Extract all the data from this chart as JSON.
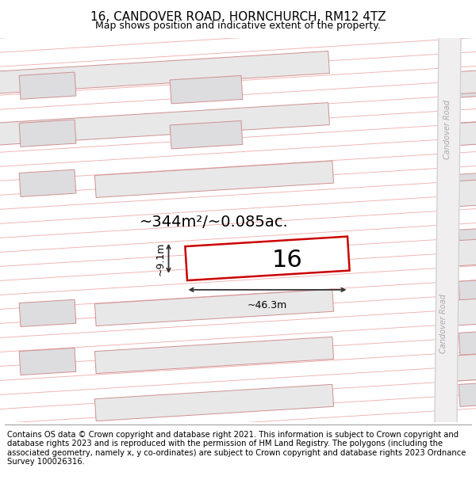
{
  "title": "16, CANDOVER ROAD, HORNCHURCH, RM12 4TZ",
  "subtitle": "Map shows position and indicative extent of the property.",
  "footnote": "Contains OS data © Crown copyright and database right 2021. This information is subject to Crown copyright and database rights 2023 and is reproduced with the permission of HM Land Registry. The polygons (including the associated geometry, namely x, y co-ordinates) are subject to Crown copyright and database rights 2023 Ordnance Survey 100026316.",
  "area_label": "~344m²/~0.085ac.",
  "width_label": "~46.3m",
  "height_label": "~9.1m",
  "plot_number": "16",
  "background_color": "#ffffff",
  "map_bg": "#faf8f8",
  "stripe_color": "#f0b0b0",
  "building_fill": "#e8e8e8",
  "building_outline": "#d09090",
  "highlight_color": "#cc0000",
  "road_fill": "#f0eeee",
  "road_line_color": "#cccccc",
  "road_label_color": "#aaaaaa",
  "road_label": "Candover Road",
  "title_fontsize": 11,
  "subtitle_fontsize": 9,
  "footnote_fontsize": 7.2,
  "area_fontsize": 14,
  "number_fontsize": 22,
  "meas_fontsize": 9
}
